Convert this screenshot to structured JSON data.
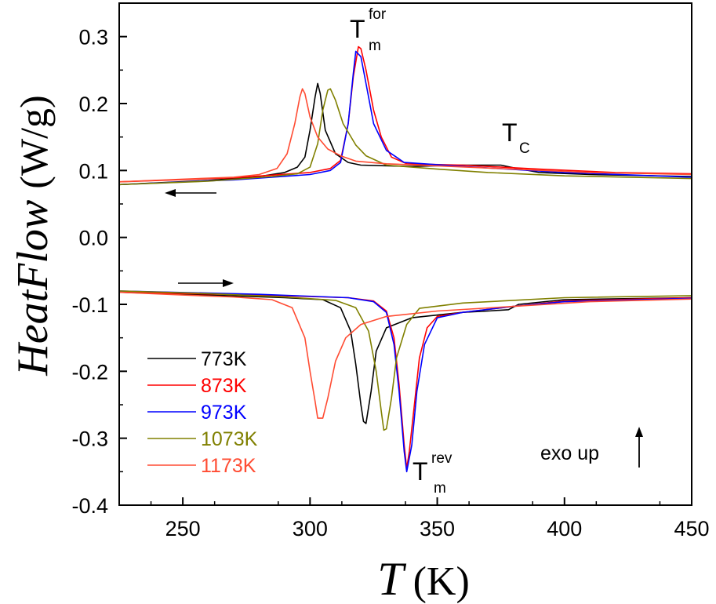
{
  "chart_data": {
    "type": "line",
    "xlabel": {
      "symbol": "T",
      "unit": "(K)"
    },
    "ylabel": {
      "symbol": "HeatFlow",
      "unit": "(W/g)"
    },
    "xlim": [
      225,
      450
    ],
    "ylim": [
      -0.4,
      0.35
    ],
    "x_ticks": [
      "250",
      "300",
      "350",
      "400",
      "450"
    ],
    "y_ticks": [
      "-0.4",
      "-0.3",
      "-0.2",
      "-0.1",
      "0.0",
      "0.1",
      "0.2",
      "0.3"
    ],
    "annotations": {
      "tm_for": {
        "base": "T",
        "sup": "for",
        "sub": "m"
      },
      "tm_rev": {
        "base": "T",
        "sup": "rev",
        "sub": "m"
      },
      "tc": {
        "base": "T",
        "sub": "C"
      },
      "exo_up": "exo up"
    },
    "arrows": {
      "upper_branch": "cooling (left arrow)",
      "lower_branch": "heating (right arrow)"
    },
    "series": [
      {
        "name": "773K",
        "color": "#000000",
        "cooling": [
          [
            225,
            0.079
          ],
          [
            260,
            0.085
          ],
          [
            280,
            0.091
          ],
          [
            290,
            0.097
          ],
          [
            295,
            0.105
          ],
          [
            298,
            0.12
          ],
          [
            300,
            0.16
          ],
          [
            302,
            0.21
          ],
          [
            303,
            0.23
          ],
          [
            304,
            0.215
          ],
          [
            306,
            0.16
          ],
          [
            310,
            0.125
          ],
          [
            315,
            0.112
          ],
          [
            320,
            0.108
          ],
          [
            340,
            0.106
          ],
          [
            360,
            0.108
          ],
          [
            375,
            0.108
          ],
          [
            380,
            0.104
          ],
          [
            390,
            0.097
          ],
          [
            410,
            0.094
          ],
          [
            450,
            0.091
          ]
        ],
        "heating": [
          [
            225,
            -0.082
          ],
          [
            260,
            -0.086
          ],
          [
            290,
            -0.09
          ],
          [
            305,
            -0.093
          ],
          [
            312,
            -0.105
          ],
          [
            316,
            -0.14
          ],
          [
            318,
            -0.19
          ],
          [
            320,
            -0.25
          ],
          [
            321,
            -0.275
          ],
          [
            322,
            -0.278
          ],
          [
            324,
            -0.23
          ],
          [
            326,
            -0.17
          ],
          [
            330,
            -0.135
          ],
          [
            340,
            -0.12
          ],
          [
            360,
            -0.112
          ],
          [
            370,
            -0.11
          ],
          [
            378,
            -0.108
          ],
          [
            382,
            -0.1
          ],
          [
            400,
            -0.093
          ],
          [
            450,
            -0.09
          ]
        ]
      },
      {
        "name": "873K",
        "color": "#ff0000",
        "cooling": [
          [
            225,
            0.083
          ],
          [
            270,
            0.089
          ],
          [
            300,
            0.097
          ],
          [
            308,
            0.103
          ],
          [
            312,
            0.115
          ],
          [
            315,
            0.17
          ],
          [
            317,
            0.24
          ],
          [
            319,
            0.285
          ],
          [
            320,
            0.282
          ],
          [
            322,
            0.25
          ],
          [
            325,
            0.19
          ],
          [
            328,
            0.15
          ],
          [
            332,
            0.12
          ],
          [
            338,
            0.11
          ],
          [
            360,
            0.108
          ],
          [
            390,
            0.102
          ],
          [
            420,
            0.097
          ],
          [
            450,
            0.095
          ]
        ],
        "heating": [
          [
            225,
            -0.082
          ],
          [
            280,
            -0.086
          ],
          [
            315,
            -0.09
          ],
          [
            325,
            -0.095
          ],
          [
            330,
            -0.11
          ],
          [
            333,
            -0.15
          ],
          [
            335,
            -0.22
          ],
          [
            337,
            -0.31
          ],
          [
            338,
            -0.345
          ],
          [
            339,
            -0.32
          ],
          [
            341,
            -0.25
          ],
          [
            343,
            -0.18
          ],
          [
            346,
            -0.135
          ],
          [
            350,
            -0.118
          ],
          [
            360,
            -0.112
          ],
          [
            380,
            -0.103
          ],
          [
            400,
            -0.095
          ],
          [
            450,
            -0.09
          ]
        ]
      },
      {
        "name": "973K",
        "color": "#0000ff",
        "cooling": [
          [
            225,
            0.079
          ],
          [
            270,
            0.086
          ],
          [
            300,
            0.094
          ],
          [
            308,
            0.1
          ],
          [
            312,
            0.112
          ],
          [
            315,
            0.17
          ],
          [
            317,
            0.245
          ],
          [
            318,
            0.278
          ],
          [
            320,
            0.27
          ],
          [
            322,
            0.23
          ],
          [
            325,
            0.17
          ],
          [
            330,
            0.13
          ],
          [
            337,
            0.112
          ],
          [
            360,
            0.106
          ],
          [
            400,
            0.097
          ],
          [
            450,
            0.09
          ]
        ],
        "heating": [
          [
            225,
            -0.08
          ],
          [
            280,
            -0.085
          ],
          [
            315,
            -0.09
          ],
          [
            325,
            -0.096
          ],
          [
            330,
            -0.112
          ],
          [
            333,
            -0.16
          ],
          [
            335,
            -0.23
          ],
          [
            337,
            -0.32
          ],
          [
            338,
            -0.35
          ],
          [
            340,
            -0.31
          ],
          [
            342,
            -0.23
          ],
          [
            345,
            -0.16
          ],
          [
            350,
            -0.12
          ],
          [
            360,
            -0.112
          ],
          [
            380,
            -0.103
          ],
          [
            400,
            -0.096
          ],
          [
            450,
            -0.091
          ]
        ]
      },
      {
        "name": "1073K",
        "color": "#808000",
        "cooling": [
          [
            225,
            0.079
          ],
          [
            260,
            0.084
          ],
          [
            285,
            0.091
          ],
          [
            295,
            0.095
          ],
          [
            300,
            0.105
          ],
          [
            303,
            0.14
          ],
          [
            305,
            0.19
          ],
          [
            307,
            0.22
          ],
          [
            308,
            0.222
          ],
          [
            310,
            0.205
          ],
          [
            313,
            0.17
          ],
          [
            318,
            0.138
          ],
          [
            322,
            0.122
          ],
          [
            330,
            0.108
          ],
          [
            350,
            0.102
          ],
          [
            370,
            0.097
          ],
          [
            400,
            0.092
          ],
          [
            450,
            0.088
          ]
        ],
        "heating": [
          [
            225,
            -0.08
          ],
          [
            260,
            -0.084
          ],
          [
            290,
            -0.089
          ],
          [
            310,
            -0.094
          ],
          [
            318,
            -0.105
          ],
          [
            323,
            -0.14
          ],
          [
            326,
            -0.2
          ],
          [
            328,
            -0.26
          ],
          [
            329,
            -0.288
          ],
          [
            330,
            -0.286
          ],
          [
            332,
            -0.24
          ],
          [
            334,
            -0.18
          ],
          [
            338,
            -0.13
          ],
          [
            343,
            -0.106
          ],
          [
            360,
            -0.098
          ],
          [
            400,
            -0.09
          ],
          [
            450,
            -0.087
          ]
        ]
      },
      {
        "name": "1173K",
        "color": "#ff4c33",
        "cooling": [
          [
            225,
            0.083
          ],
          [
            250,
            0.087
          ],
          [
            270,
            0.09
          ],
          [
            280,
            0.094
          ],
          [
            287,
            0.103
          ],
          [
            291,
            0.125
          ],
          [
            294,
            0.17
          ],
          [
            296,
            0.21
          ],
          [
            297,
            0.222
          ],
          [
            298,
            0.215
          ],
          [
            300,
            0.18
          ],
          [
            303,
            0.15
          ],
          [
            307,
            0.132
          ],
          [
            312,
            0.122
          ],
          [
            318,
            0.114
          ],
          [
            330,
            0.11
          ],
          [
            350,
            0.107
          ],
          [
            380,
            0.102
          ],
          [
            410,
            0.097
          ],
          [
            450,
            0.094
          ]
        ],
        "heating": [
          [
            225,
            -0.082
          ],
          [
            250,
            -0.086
          ],
          [
            270,
            -0.089
          ],
          [
            285,
            -0.093
          ],
          [
            293,
            -0.105
          ],
          [
            298,
            -0.15
          ],
          [
            300,
            -0.2
          ],
          [
            302,
            -0.245
          ],
          [
            303,
            -0.27
          ],
          [
            305,
            -0.27
          ],
          [
            307,
            -0.24
          ],
          [
            310,
            -0.185
          ],
          [
            314,
            -0.15
          ],
          [
            320,
            -0.13
          ],
          [
            330,
            -0.118
          ],
          [
            350,
            -0.11
          ],
          [
            380,
            -0.103
          ],
          [
            410,
            -0.096
          ],
          [
            450,
            -0.092
          ]
        ]
      }
    ]
  }
}
